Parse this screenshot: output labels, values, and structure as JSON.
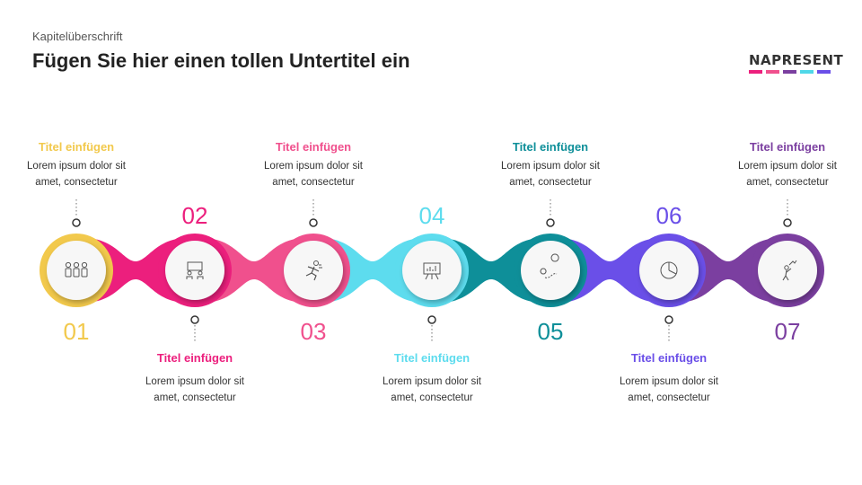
{
  "header": {
    "kicker": "Kapitelüberschrift",
    "title": "Fügen Sie hier einen tollen Untertitel ein"
  },
  "logo": {
    "text": "NAPRESENT",
    "bar_colors": [
      "#ec1f7d",
      "#f0508d",
      "#7b3fa0",
      "#4fd8e8",
      "#6a4fe8"
    ]
  },
  "steps": [
    {
      "number": "01",
      "title": "Titel einfügen",
      "desc1": "Lorem ipsum dolor sit",
      "desc2": "amet, consectetur",
      "color": "#f2c94c",
      "icon": "people-icon"
    },
    {
      "number": "02",
      "title": "Titel einfügen",
      "desc1": "Lorem ipsum dolor sit",
      "desc2": "amet, consectetur",
      "color": "#ec1f7d",
      "icon": "meeting-icon"
    },
    {
      "number": "03",
      "title": "Titel einfügen",
      "desc1": "Lorem ipsum dolor sit",
      "desc2": "amet, consectetur",
      "color": "#f0508d",
      "icon": "runner-icon"
    },
    {
      "number": "04",
      "title": "Titel einfügen",
      "desc1": "Lorem ipsum dolor sit",
      "desc2": "amet, consectetur",
      "color": "#5ddcee",
      "icon": "presentation-icon"
    },
    {
      "number": "05",
      "title": "Titel einfügen",
      "desc1": "Lorem ipsum dolor sit",
      "desc2": "amet, consectetur",
      "color": "#0e8f99",
      "icon": "map-route-icon"
    },
    {
      "number": "06",
      "title": "Titel einfügen",
      "desc1": "Lorem ipsum dolor sit",
      "desc2": "amet, consectetur",
      "color": "#6a4fe8",
      "icon": "pie-chart-icon"
    },
    {
      "number": "07",
      "title": "Titel einfügen",
      "desc1": "Lorem ipsum dolor sit",
      "desc2": "amet, consectetur",
      "color": "#7b3fa0",
      "icon": "growth-person-icon"
    }
  ]
}
